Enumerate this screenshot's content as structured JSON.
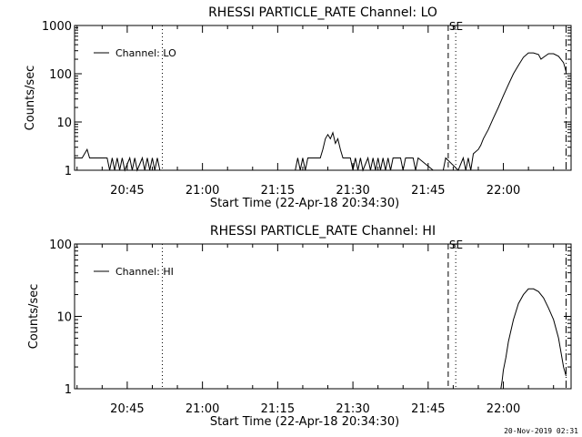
{
  "footer": {
    "timestamp": "20-Nov-2019 02:31"
  },
  "chart_data": [
    {
      "type": "line",
      "title": "RHESSI PARTICLE_RATE Channel: LO",
      "xlabel": "Start Time (22-Apr-18 20:34:30)",
      "ylabel": "Counts/sec",
      "yscale": "log",
      "ylim": [
        1,
        1000
      ],
      "ytick_labels": [
        "1000",
        "100",
        "10",
        "1"
      ],
      "ytick_values": [
        1000,
        100,
        10,
        1
      ],
      "xlim": [
        "20:34:30",
        "22:13:30"
      ],
      "xtick_labels": [
        "20:45",
        "21:00",
        "21:15",
        "21:30",
        "21:45",
        "22:00"
      ],
      "xtick_values": [
        "20:45",
        "21:00",
        "21:15",
        "21:30",
        "21:45",
        "22:00"
      ],
      "legend": {
        "placement": "top-left",
        "entries": [
          "Channel: LO"
        ]
      },
      "annotations": [
        "SE"
      ],
      "vlines": [
        {
          "x": "20:52:00",
          "style": "dotted"
        },
        {
          "x": "21:49:00",
          "style": "dashed"
        },
        {
          "x": "21:50:30",
          "style": "dotted"
        },
        {
          "x": "22:12:30",
          "style": "dashdot"
        }
      ],
      "series": [
        {
          "x": [
            "20:34:30",
            "20:36:00",
            "20:37:00",
            "20:37:30",
            "20:38:30",
            "20:41:00",
            "20:41:30",
            "20:42:00",
            "20:42:30",
            "20:43:00",
            "20:43:30",
            "20:44:00",
            "20:44:30",
            "20:45:30",
            "20:46:00",
            "20:46:30",
            "20:47:00",
            "20:48:00",
            "20:48:30",
            "20:49:00",
            "20:49:30",
            "20:50:00",
            "20:50:30",
            "20:51:00",
            "20:51:30",
            "20:52:00",
            "21:18:30",
            "21:19:00",
            "21:19:30",
            "21:20:00",
            "21:20:30",
            "21:21:00",
            "21:23:30",
            "21:24:00",
            "21:24:30",
            "21:25:00",
            "21:25:30",
            "21:26:00",
            "21:26:30",
            "21:27:00",
            "21:27:30",
            "21:28:00",
            "21:29:30",
            "21:30:00",
            "21:30:30",
            "21:31:00",
            "21:31:30",
            "21:32:00",
            "21:33:00",
            "21:33:30",
            "21:34:00",
            "21:34:30",
            "21:35:00",
            "21:35:30",
            "21:36:00",
            "21:36:30",
            "21:37:00",
            "21:37:30",
            "21:38:00",
            "21:39:30",
            "21:40:00",
            "21:40:30",
            "21:42:00",
            "21:42:30",
            "21:43:00",
            "21:46:00",
            "21:48:00",
            "21:48:30",
            "21:51:00",
            "21:52:00",
            "21:52:30",
            "21:53:00",
            "21:53:30",
            "21:54:00",
            "21:55:00",
            "21:55:30",
            "21:56:00",
            "21:57:00",
            "21:58:00",
            "21:59:00",
            "22:00:00",
            "22:01:00",
            "22:02:00",
            "22:03:00",
            "22:04:00",
            "22:05:00",
            "22:06:00",
            "22:07:00",
            "22:07:30",
            "22:08:00",
            "22:09:00",
            "22:10:00",
            "22:11:00",
            "22:12:00",
            "22:12:30"
          ],
          "values": [
            1.8,
            1.8,
            2.7,
            1.8,
            1.8,
            1.8,
            1,
            1.8,
            1,
            1.8,
            1,
            1.8,
            1,
            1.8,
            1,
            1.8,
            1,
            1.8,
            1,
            1.8,
            1,
            1.8,
            1,
            1.8,
            1,
            1,
            1,
            1.8,
            1,
            1.8,
            1,
            1.8,
            1.8,
            2.7,
            4.5,
            5.5,
            4.5,
            6,
            3.6,
            4.5,
            2.7,
            1.8,
            1.8,
            1,
            1.8,
            1,
            1.8,
            1,
            1.8,
            1,
            1.8,
            1,
            1.8,
            1,
            1.8,
            1,
            1.8,
            1,
            1.8,
            1.8,
            1,
            1.8,
            1.8,
            1,
            1.8,
            1,
            1,
            1.8,
            1,
            1.8,
            1,
            1.8,
            1,
            2.2,
            2.7,
            3.3,
            4.5,
            7,
            12,
            20,
            35,
            60,
            100,
            150,
            220,
            270,
            270,
            250,
            200,
            220,
            260,
            260,
            230,
            170,
            110
          ]
        }
      ]
    },
    {
      "type": "line",
      "title": "RHESSI PARTICLE_RATE Channel: HI",
      "xlabel": "Start Time (22-Apr-18 20:34:30)",
      "ylabel": "Counts/sec",
      "yscale": "log",
      "ylim": [
        1,
        100
      ],
      "ytick_labels": [
        "100",
        "10",
        "1"
      ],
      "ytick_values": [
        100,
        10,
        1
      ],
      "xlim": [
        "20:34:30",
        "22:13:30"
      ],
      "xtick_labels": [
        "20:45",
        "21:00",
        "21:15",
        "21:30",
        "21:45",
        "22:00"
      ],
      "xtick_values": [
        "20:45",
        "21:00",
        "21:15",
        "21:30",
        "21:45",
        "22:00"
      ],
      "legend": {
        "placement": "top-left",
        "entries": [
          "Channel: HI"
        ]
      },
      "annotations": [
        "SE"
      ],
      "vlines": [
        {
          "x": "20:52:00",
          "style": "dotted"
        },
        {
          "x": "21:49:00",
          "style": "dashed"
        },
        {
          "x": "21:50:30",
          "style": "dotted"
        },
        {
          "x": "22:12:30",
          "style": "dashdot"
        }
      ],
      "series": [
        {
          "x": [
            "21:59:30",
            "21:59:45",
            "22:00:00",
            "22:00:30",
            "22:01:00",
            "22:02:00",
            "22:03:00",
            "22:04:00",
            "22:05:00",
            "22:06:00",
            "22:07:00",
            "22:08:00",
            "22:09:00",
            "22:10:00",
            "22:11:00",
            "22:12:00",
            "22:12:30"
          ],
          "values": [
            1,
            1.3,
            1.8,
            2.7,
            4.5,
            9,
            15,
            20,
            24,
            24,
            22,
            18,
            13,
            9,
            5,
            2,
            1.5
          ]
        }
      ]
    }
  ]
}
